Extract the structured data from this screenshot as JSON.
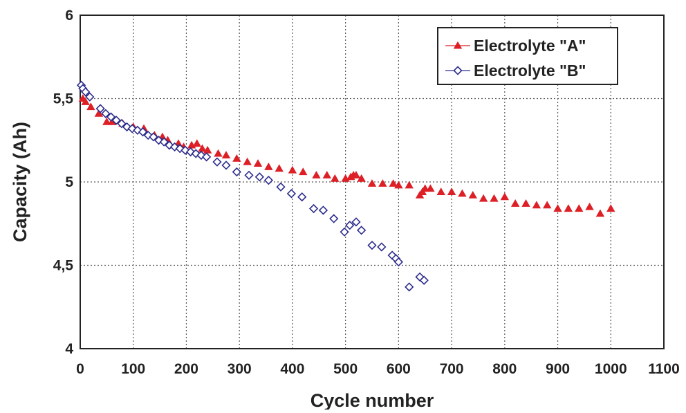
{
  "chart_data": {
    "type": "scatter",
    "xlabel": "Cycle number",
    "ylabel": "Capacity (Ah)",
    "xlim": [
      0,
      1100
    ],
    "ylim": [
      4,
      6
    ],
    "xticks": [
      "0",
      "100",
      "200",
      "300",
      "400",
      "500",
      "600",
      "700",
      "800",
      "900",
      "1000",
      "1100"
    ],
    "yticks": [
      "4",
      "4,5",
      "5",
      "5,5",
      "6"
    ],
    "grid": true,
    "legend_position": "top-right",
    "series": [
      {
        "name": "Electrolyte \"A\"",
        "marker": "filled-triangle",
        "color": "#dd1f26",
        "x": [
          5,
          10,
          20,
          35,
          50,
          60,
          80,
          100,
          120,
          140,
          155,
          165,
          185,
          195,
          210,
          220,
          230,
          240,
          260,
          275,
          295,
          315,
          335,
          355,
          375,
          400,
          420,
          445,
          465,
          480,
          500,
          510,
          515,
          520,
          530,
          550,
          570,
          590,
          600,
          620,
          640,
          645,
          650,
          660,
          680,
          700,
          720,
          740,
          760,
          780,
          800,
          820,
          840,
          860,
          880,
          900,
          920,
          940,
          960,
          980,
          1000
        ],
        "y": [
          5.5,
          5.48,
          5.45,
          5.41,
          5.36,
          5.36,
          5.35,
          5.33,
          5.32,
          5.28,
          5.27,
          5.25,
          5.23,
          5.21,
          5.22,
          5.23,
          5.2,
          5.19,
          5.17,
          5.16,
          5.14,
          5.12,
          5.11,
          5.09,
          5.08,
          5.07,
          5.06,
          5.04,
          5.04,
          5.02,
          5.02,
          5.03,
          5.04,
          5.04,
          5.02,
          4.99,
          4.99,
          4.99,
          4.98,
          4.98,
          4.92,
          4.94,
          4.96,
          4.96,
          4.94,
          4.94,
          4.93,
          4.92,
          4.9,
          4.9,
          4.91,
          4.87,
          4.87,
          4.86,
          4.86,
          4.84,
          4.84,
          4.84,
          4.85,
          4.81,
          4.84
        ]
      },
      {
        "name": "Electrolyte \"B\"",
        "marker": "open-diamond",
        "color": "#2c2c8c",
        "x": [
          2,
          5,
          10,
          18,
          38,
          48,
          58,
          68,
          78,
          88,
          98,
          108,
          118,
          128,
          138,
          148,
          158,
          168,
          178,
          188,
          198,
          208,
          218,
          228,
          238,
          258,
          275,
          295,
          318,
          338,
          355,
          378,
          398,
          418,
          440,
          458,
          478,
          498,
          508,
          520,
          530,
          550,
          568,
          588,
          595,
          600,
          620,
          640,
          648
        ],
        "y": [
          5.58,
          5.56,
          5.54,
          5.51,
          5.44,
          5.41,
          5.39,
          5.37,
          5.35,
          5.33,
          5.32,
          5.31,
          5.3,
          5.28,
          5.27,
          5.25,
          5.24,
          5.22,
          5.21,
          5.2,
          5.19,
          5.18,
          5.17,
          5.16,
          5.15,
          5.12,
          5.1,
          5.06,
          5.04,
          5.03,
          5.01,
          4.97,
          4.93,
          4.91,
          4.84,
          4.83,
          4.78,
          4.7,
          4.74,
          4.76,
          4.71,
          4.62,
          4.61,
          4.56,
          4.54,
          4.52,
          4.37,
          4.43,
          4.41
        ]
      }
    ]
  }
}
